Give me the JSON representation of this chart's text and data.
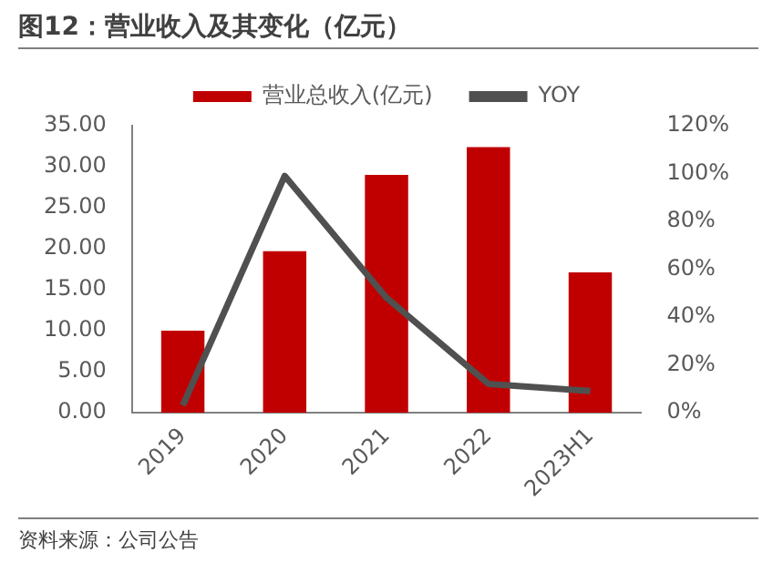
{
  "chart_data": {
    "type": "bar",
    "title": "图12：营业收入及其变化（亿元）",
    "categories": [
      "2019",
      "2020",
      "2021",
      "2022",
      "2023H1"
    ],
    "series": [
      {
        "name": "营业总收入(亿元)",
        "color": "#c00000",
        "values": [
          10.0,
          19.7,
          29.0,
          32.4,
          17.1
        ]
      },
      {
        "name": "YOY",
        "type": "line",
        "axis": "y2",
        "color": "#505050",
        "values": [
          3,
          99,
          48,
          12,
          9
        ]
      }
    ],
    "ylim": [
      0,
      35
    ],
    "yticks": [
      {
        "value": 0,
        "label": "0.00"
      },
      {
        "value": 5,
        "label": "5.00"
      },
      {
        "value": 10,
        "label": "10.00"
      },
      {
        "value": 15,
        "label": "15.00"
      },
      {
        "value": 20,
        "label": "20.00"
      },
      {
        "value": 25,
        "label": "25.00"
      },
      {
        "value": 30,
        "label": "30.00"
      },
      {
        "value": 35,
        "label": "35.00"
      }
    ],
    "y2lim": [
      0,
      120
    ],
    "y2ticks": [
      {
        "value": 0,
        "label": "0%"
      },
      {
        "value": 20,
        "label": "20%"
      },
      {
        "value": 40,
        "label": "40%"
      },
      {
        "value": 60,
        "label": "60%"
      },
      {
        "value": 80,
        "label": "80%"
      },
      {
        "value": 100,
        "label": "100%"
      },
      {
        "value": 120,
        "label": "120%"
      }
    ],
    "legend": "top",
    "grid": false,
    "marker": "none",
    "annotations": [
      "资料来源：公司公告"
    ]
  }
}
